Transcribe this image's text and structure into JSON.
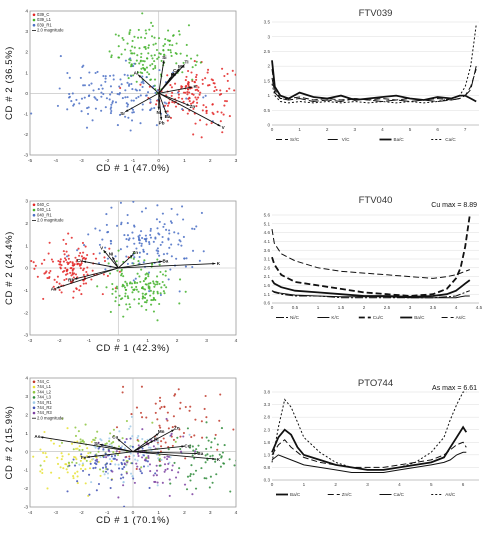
{
  "figure": {
    "rows": [
      {
        "biplot": {
          "xlabel": "CD # 1 (47.0%)",
          "ylabel": "CD # 2 (36.5%)",
          "xlim": [
            -5,
            3
          ],
          "ylim": [
            -3,
            4
          ],
          "xticks": [
            -5,
            -4,
            -3,
            -2,
            -1,
            0,
            1,
            2,
            3
          ],
          "yticks": [
            -3,
            -2,
            -1,
            0,
            1,
            2,
            3,
            4
          ],
          "groups": [
            {
              "name": "039_C",
              "color": "#e32626"
            },
            {
              "name": "039_L1",
              "color": "#42b12a"
            },
            {
              "name": "039_R1",
              "color": "#4a6fc4"
            }
          ],
          "magnitude_label": "2.0 magnitude",
          "vector_labels": [
            "Ti",
            "Mn",
            "Al",
            "Ca",
            "Fe",
            "Si",
            "Ni",
            "Sr",
            "K",
            "Ba",
            "Zn",
            "Pb",
            "V"
          ]
        },
        "profile": {
          "title": "FTV039",
          "annotation": "",
          "xlim": [
            0,
            7.5
          ],
          "ylim": [
            0,
            3.5
          ],
          "xticks": [
            0,
            1,
            2,
            3,
            4,
            5,
            6,
            7
          ],
          "yticks": [
            0,
            0.5,
            1,
            1.5,
            2,
            2.5,
            3,
            3.5
          ],
          "series": [
            {
              "name": "Sr/C",
              "dash": "6,3",
              "width": 1
            },
            {
              "name": "V/C",
              "dash": "10,3",
              "width": 1
            },
            {
              "name": "Ba/C",
              "dash": "",
              "width": 1.8
            },
            {
              "name": "Ca/C",
              "dash": "2,2",
              "width": 1
            }
          ]
        }
      },
      {
        "biplot": {
          "xlabel": "CD # 1 (42.3%)",
          "ylabel": "CD # 2 (24.4%)",
          "xlim": [
            -3,
            4
          ],
          "ylim": [
            -3,
            3
          ],
          "xticks": [
            -3,
            -2,
            -1,
            0,
            1,
            2,
            3,
            4
          ],
          "yticks": [
            -3,
            -2,
            -1,
            0,
            1,
            2,
            3
          ],
          "groups": [
            {
              "name": "040_C",
              "color": "#e32626"
            },
            {
              "name": "040_L1",
              "color": "#42b12a"
            },
            {
              "name": "040_R1",
              "color": "#4a6fc4"
            }
          ],
          "magnitude_label": "2.0 magnitude",
          "vector_labels": [
            "V",
            "Cu",
            "Rb",
            "K",
            "Ba",
            "Zn",
            "As",
            "Ni"
          ]
        },
        "profile": {
          "title": "FTV040",
          "annotation": "Cu max = 8.89",
          "xlim": [
            0,
            4.5
          ],
          "ylim": [
            0.6,
            5.6
          ],
          "xticks": [
            0,
            0.5,
            1,
            1.5,
            2,
            2.5,
            3,
            3.5,
            4,
            4.5
          ],
          "yticks": [
            0.6,
            1.1,
            1.6,
            2.1,
            2.6,
            3.1,
            3.6,
            4.1,
            4.6,
            5.1,
            5.6
          ],
          "series": [
            {
              "name": "Ni/C",
              "dash": "8,2,2,2",
              "width": 1
            },
            {
              "name": "K/C",
              "dash": "",
              "width": 1
            },
            {
              "name": "Cu/C",
              "dash": "6,3",
              "width": 1.8
            },
            {
              "name": "Ba/C",
              "dash": "",
              "width": 1.8
            },
            {
              "name": "As/C",
              "dash": "6,3",
              "width": 1
            }
          ]
        }
      },
      {
        "biplot": {
          "xlabel": "CD # 1 (70.1%)",
          "ylabel": "CD # 2 (15.9%)",
          "xlim": [
            -4,
            4
          ],
          "ylim": [
            -3,
            4
          ],
          "xticks": [
            -4,
            -3,
            -2,
            -1,
            0,
            1,
            2,
            3,
            4
          ],
          "yticks": [
            -3,
            -2,
            -1,
            0,
            1,
            2,
            3,
            4
          ],
          "groups": [
            {
              "name": "744_C",
              "color": "#c0392b"
            },
            {
              "name": "744_L1",
              "color": "#e6e033"
            },
            {
              "name": "744_L2",
              "color": "#8dc63f"
            },
            {
              "name": "744_L3",
              "color": "#2e8b3a"
            },
            {
              "name": "744_R1",
              "color": "#9ec9e6"
            },
            {
              "name": "744_R2",
              "color": "#3f51b5"
            },
            {
              "name": "744_R3",
              "color": "#7b3fa0"
            }
          ],
          "magnitude_label": "2.0 magnitude",
          "vector_labels": [
            "Mn",
            "Ni",
            "Zn",
            "Cu",
            "Ba",
            "K",
            "Ca",
            "Sr",
            "Fe",
            "As"
          ]
        },
        "profile": {
          "title": "PTO744",
          "annotation": "As max = 6.61",
          "xlim": [
            0,
            6.5
          ],
          "ylim": [
            0.3,
            3.8
          ],
          "xticks": [
            0,
            1,
            2,
            3,
            4,
            5,
            6
          ],
          "yticks": [
            0.3,
            0.8,
            1.3,
            1.8,
            2.3,
            2.8,
            3.3,
            3.8
          ],
          "series": [
            {
              "name": "Ba/C",
              "dash": "",
              "width": 1.8
            },
            {
              "name": "Zn/C",
              "dash": "6,3",
              "width": 1
            },
            {
              "name": "Ca/C",
              "dash": "",
              "width": 1
            },
            {
              "name": "As/C",
              "dash": "2,2",
              "width": 1
            }
          ]
        }
      }
    ]
  },
  "chart_data": [
    {
      "type": "scatter",
      "title": "",
      "xlabel": "CD # 1 (47.0%)",
      "ylabel": "CD # 2 (36.5%)",
      "xlim": [
        -5,
        3
      ],
      "ylim": [
        -3,
        4
      ],
      "legend_position": "top-left",
      "series": [
        {
          "name": "039_C",
          "center": [
            1.3,
            0.0
          ],
          "spread": [
            0.8,
            0.7
          ]
        },
        {
          "name": "039_L1",
          "center": [
            -0.2,
            1.8
          ],
          "spread": [
            0.8,
            0.7
          ]
        },
        {
          "name": "039_R1",
          "center": [
            -1.5,
            -0.1
          ],
          "spread": [
            1.2,
            0.7
          ]
        }
      ],
      "vectors": [
        {
          "label": "Ti",
          "x": 1.0,
          "y": 1.4
        },
        {
          "label": "Mn",
          "x": 0.8,
          "y": 1.2
        },
        {
          "label": "Al",
          "x": -0.8,
          "y": 0.9
        },
        {
          "label": "Ca",
          "x": 0.6,
          "y": 1.0
        },
        {
          "label": "Fe",
          "x": 0.5,
          "y": 0.8
        },
        {
          "label": "Si",
          "x": 0.2,
          "y": 1.6
        },
        {
          "label": "Ni",
          "x": 0.0,
          "y": -0.8
        },
        {
          "label": "Sr",
          "x": -1.3,
          "y": -0.9
        },
        {
          "label": "K",
          "x": 1.3,
          "y": 0.3
        },
        {
          "label": "Ba",
          "x": 0.3,
          "y": -1.0
        },
        {
          "label": "Zn",
          "x": 1.2,
          "y": -0.6
        },
        {
          "label": "Pb",
          "x": 0.1,
          "y": -1.3
        },
        {
          "label": "V",
          "x": 2.4,
          "y": -1.6
        }
      ]
    },
    {
      "type": "line",
      "title": "FTV039",
      "xlim": [
        0,
        7.5
      ],
      "ylim": [
        0,
        3.5
      ],
      "x": [
        0,
        0.1,
        0.3,
        0.6,
        1,
        1.5,
        2,
        2.5,
        3,
        3.5,
        4,
        4.5,
        5,
        5.5,
        6,
        6.5,
        6.8,
        7,
        7.2,
        7.3,
        7.4
      ],
      "series": [
        {
          "name": "Sr/C",
          "values": [
            1.9,
            1.2,
            0.9,
            0.9,
            0.95,
            0.85,
            0.9,
            0.85,
            0.9,
            0.85,
            0.9,
            0.85,
            0.9,
            0.85,
            0.9,
            0.85,
            0.9,
            1.0,
            1.3,
            1.6,
            1.9
          ]
        },
        {
          "name": "V/C",
          "values": [
            1.6,
            1.1,
            0.9,
            0.85,
            0.9,
            0.8,
            0.85,
            0.8,
            0.9,
            0.85,
            0.8,
            0.85,
            0.8,
            0.85,
            0.8,
            0.85,
            0.9,
            1.0,
            1.2,
            1.6,
            2.0
          ]
        },
        {
          "name": "Ba/C",
          "values": [
            2.2,
            1.3,
            1.0,
            0.9,
            1.1,
            0.95,
            0.9,
            1.0,
            0.85,
            0.9,
            0.95,
            1.0,
            0.9,
            0.85,
            0.95,
            0.9,
            1.0,
            1.0,
            0.9,
            0.85,
            0.8
          ]
        },
        {
          "name": "Ca/C",
          "values": [
            1.4,
            1.0,
            0.8,
            0.75,
            0.8,
            0.75,
            0.8,
            0.75,
            0.8,
            0.75,
            0.8,
            0.75,
            0.8,
            0.75,
            0.8,
            0.9,
            1.0,
            1.3,
            2.0,
            2.7,
            3.4
          ]
        }
      ]
    },
    {
      "type": "scatter",
      "title": "",
      "xlabel": "CD # 1 (42.3%)",
      "ylabel": "CD # 2 (24.4%)",
      "xlim": [
        -3,
        4
      ],
      "ylim": [
        -3,
        3
      ],
      "legend_position": "top-left",
      "series": [
        {
          "name": "040_C",
          "center": [
            -1.5,
            0.0
          ],
          "spread": [
            0.7,
            0.6
          ]
        },
        {
          "name": "040_L1",
          "center": [
            0.7,
            -0.8
          ],
          "spread": [
            0.6,
            0.6
          ]
        },
        {
          "name": "040_R1",
          "center": [
            1.1,
            1.1
          ],
          "spread": [
            0.9,
            0.8
          ]
        }
      ],
      "vectors": [
        {
          "label": "V",
          "x": -0.5,
          "y": 0.8
        },
        {
          "label": "Cu",
          "x": -1.2,
          "y": 0.3
        },
        {
          "label": "Rb",
          "x": -1.5,
          "y": -0.5
        },
        {
          "label": "K",
          "x": 3.3,
          "y": 0.2
        },
        {
          "label": "Ba",
          "x": 1.5,
          "y": 0.3
        },
        {
          "label": "Zn",
          "x": 0.5,
          "y": 0.6
        },
        {
          "label": "As",
          "x": -2.1,
          "y": -0.9
        },
        {
          "label": "Ni",
          "x": -0.2,
          "y": 0.5
        }
      ]
    },
    {
      "type": "line",
      "title": "FTV040",
      "xlim": [
        0,
        4.5
      ],
      "ylim": [
        0.6,
        5.6
      ],
      "annotation": "Cu max = 8.89",
      "x": [
        0,
        0.05,
        0.2,
        0.5,
        1,
        1.5,
        2,
        2.5,
        3,
        3.5,
        3.8,
        4.0,
        4.1,
        4.2,
        4.3
      ],
      "series": [
        {
          "name": "Ni/C",
          "values": [
            1.3,
            1.2,
            1.1,
            1.0,
            1.0,
            0.9,
            0.9,
            0.9,
            0.9,
            0.9,
            0.95,
            1.0,
            1.1,
            1.2,
            1.3
          ]
        },
        {
          "name": "K/C",
          "values": [
            1.3,
            1.25,
            1.15,
            1.05,
            1.0,
            0.95,
            0.95,
            0.95,
            0.9,
            0.9,
            0.9,
            0.9,
            0.95,
            1.0,
            1.0
          ]
        },
        {
          "name": "Cu/C",
          "values": [
            3.2,
            2.8,
            2.2,
            1.8,
            1.6,
            1.4,
            1.2,
            1.1,
            1.0,
            1.1,
            1.4,
            2.0,
            2.6,
            3.8,
            5.6
          ]
        },
        {
          "name": "Ba/C",
          "values": [
            1.9,
            1.7,
            1.5,
            1.3,
            1.2,
            1.1,
            1.0,
            1.0,
            0.95,
            1.0,
            1.1,
            1.3,
            1.5,
            1.7,
            1.9
          ]
        },
        {
          "name": "As/C",
          "values": [
            4.8,
            4.0,
            3.4,
            3.0,
            2.6,
            2.4,
            2.3,
            2.2,
            2.1,
            2.0,
            2.1,
            2.2,
            2.3,
            2.4,
            2.5
          ]
        }
      ]
    },
    {
      "type": "scatter",
      "title": "",
      "xlabel": "CD # 1 (70.1%)",
      "ylabel": "CD # 2 (15.9%)",
      "xlim": [
        -4,
        4
      ],
      "ylim": [
        -3,
        4
      ],
      "legend_position": "top-left",
      "series": [
        {
          "name": "744_C",
          "center": [
            1.5,
            1.5
          ],
          "spread": [
            1.0,
            1.0
          ]
        },
        {
          "name": "744_L1",
          "center": [
            -2.5,
            -0.5
          ],
          "spread": [
            0.8,
            0.7
          ]
        },
        {
          "name": "744_L2",
          "center": [
            -1.2,
            0.3
          ],
          "spread": [
            1.0,
            0.8
          ]
        },
        {
          "name": "744_L3",
          "center": [
            2.8,
            -0.3
          ],
          "spread": [
            0.8,
            0.8
          ]
        },
        {
          "name": "744_R1",
          "center": [
            -0.2,
            0.0
          ],
          "spread": [
            1.0,
            0.8
          ]
        },
        {
          "name": "744_R2",
          "center": [
            -0.8,
            -0.8
          ],
          "spread": [
            0.9,
            0.7
          ]
        },
        {
          "name": "744_R3",
          "center": [
            0.5,
            -0.6
          ],
          "spread": [
            0.9,
            0.8
          ]
        }
      ],
      "vectors": [
        {
          "label": "Mn",
          "x": 1.0,
          "y": 1.0
        },
        {
          "label": "Ni",
          "x": 0.8,
          "y": 0.6
        },
        {
          "label": "Zn",
          "x": 1.6,
          "y": 1.2
        },
        {
          "label": "Cu",
          "x": 2.0,
          "y": 0.3
        },
        {
          "label": "Ba",
          "x": 2.5,
          "y": -0.1
        },
        {
          "label": "K",
          "x": 3.2,
          "y": -0.4
        },
        {
          "label": "Ca",
          "x": -0.6,
          "y": 0.7
        },
        {
          "label": "Sr",
          "x": -1.3,
          "y": 0.4
        },
        {
          "label": "Fe",
          "x": -1.8,
          "y": -0.3
        },
        {
          "label": "As",
          "x": -3.6,
          "y": 0.8
        }
      ]
    },
    {
      "type": "line",
      "title": "PTO744",
      "xlim": [
        0,
        6.5
      ],
      "ylim": [
        0.3,
        3.8
      ],
      "annotation": "As max = 6.61",
      "x": [
        0,
        0.2,
        0.4,
        0.6,
        0.8,
        1.0,
        1.5,
        2.0,
        2.5,
        3.0,
        3.5,
        4.0,
        4.5,
        5.0,
        5.4,
        5.6,
        5.8,
        6.0,
        6.1
      ],
      "series": [
        {
          "name": "Ba/C",
          "values": [
            1.4,
            2.0,
            2.3,
            2.1,
            1.6,
            1.3,
            1.1,
            0.9,
            0.8,
            0.7,
            0.7,
            0.8,
            0.9,
            1.0,
            1.2,
            1.6,
            2.0,
            2.4,
            2.2
          ]
        },
        {
          "name": "Zn/C",
          "values": [
            1.3,
            1.7,
            1.9,
            1.6,
            1.4,
            1.2,
            1.0,
            0.9,
            0.8,
            0.8,
            0.8,
            0.9,
            1.0,
            1.1,
            1.3,
            1.5,
            1.7,
            1.8,
            1.6
          ]
        },
        {
          "name": "Ca/C",
          "values": [
            1.1,
            1.3,
            1.2,
            1.1,
            1.0,
            0.9,
            0.8,
            0.7,
            0.6,
            0.6,
            0.6,
            0.7,
            0.8,
            0.9,
            1.0,
            1.1,
            1.3,
            1.4,
            1.4
          ]
        },
        {
          "name": "As/C",
          "values": [
            1.0,
            2.4,
            3.5,
            3.2,
            2.6,
            2.0,
            1.4,
            1.0,
            0.8,
            0.7,
            0.7,
            0.8,
            1.0,
            1.4,
            2.0,
            2.7,
            3.3,
            3.8,
            3.8
          ]
        }
      ]
    }
  ]
}
